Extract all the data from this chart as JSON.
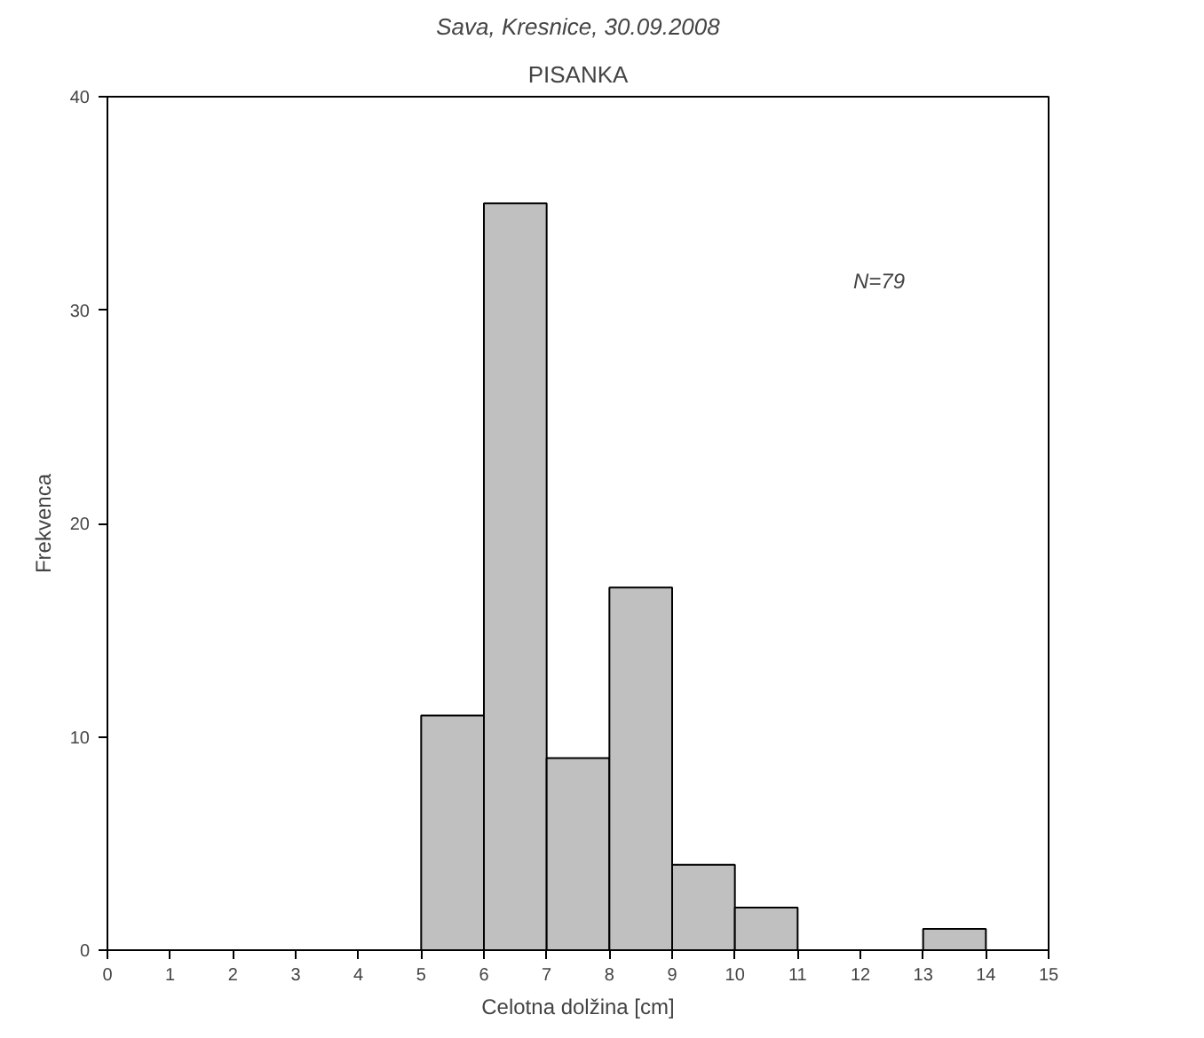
{
  "chart_data": {
    "type": "histogram",
    "title": "Sava, Kresnice, 30.09.2008",
    "subtitle": "PISANKA",
    "xlabel": "Celotna dolžina [cm]",
    "ylabel": "Frekvenca",
    "bins": [
      0,
      1,
      2,
      3,
      4,
      5,
      6,
      7,
      8,
      9,
      10,
      11,
      12,
      13,
      14,
      15
    ],
    "values": [
      0,
      0,
      0,
      0,
      0,
      11,
      35,
      9,
      17,
      4,
      2,
      0,
      0,
      1,
      0
    ],
    "color": "#c0c0c0",
    "xlim": [
      0,
      15
    ],
    "xticks": [
      0,
      1,
      2,
      3,
      4,
      5,
      6,
      7,
      8,
      9,
      10,
      11,
      12,
      13,
      14,
      15
    ],
    "ylim": [
      0,
      40
    ],
    "yticks": [
      0,
      10,
      20,
      30,
      40
    ],
    "grid": false,
    "annotations": [
      "N=79"
    ]
  }
}
